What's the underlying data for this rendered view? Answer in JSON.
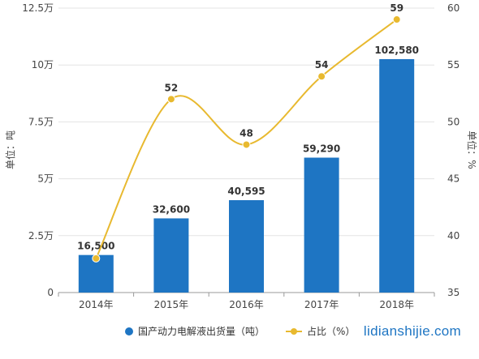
{
  "chart_data": {
    "type": "bar+line",
    "categories": [
      "2014年",
      "2015年",
      "2016年",
      "2017年",
      "2018年"
    ],
    "series": [
      {
        "name": "国产动力电解液出货量（吨）",
        "type": "bar",
        "axis": "left",
        "values": [
          16500,
          32600,
          40595,
          59290,
          102580
        ],
        "labels": [
          "16,500",
          "32,600",
          "40,595",
          "59,290",
          "102,580"
        ]
      },
      {
        "name": "占比（%）",
        "type": "line",
        "axis": "right",
        "values": [
          38,
          52,
          48,
          54,
          59
        ],
        "labels": [
          "",
          "52",
          "48",
          "54",
          "59"
        ]
      }
    ],
    "y_left": {
      "label": "单位：吨",
      "range": [
        0,
        125000
      ],
      "ticks": [
        0,
        25000,
        50000,
        75000,
        100000,
        125000
      ],
      "tick_labels": [
        "0",
        "2.5万",
        "5万",
        "7.5万",
        "10万",
        "12.5万"
      ]
    },
    "y_right": {
      "label": "单位：%",
      "range": [
        35,
        60
      ],
      "ticks": [
        35,
        40,
        45,
        50,
        55,
        60
      ],
      "tick_labels": [
        "35",
        "40",
        "45",
        "50",
        "55",
        "60"
      ]
    },
    "grid": true,
    "legend_position": "bottom",
    "colors": {
      "bar": "#1e75c3",
      "line": "#e8b92f"
    }
  },
  "footer": {
    "website": "lidianshijie.com"
  }
}
